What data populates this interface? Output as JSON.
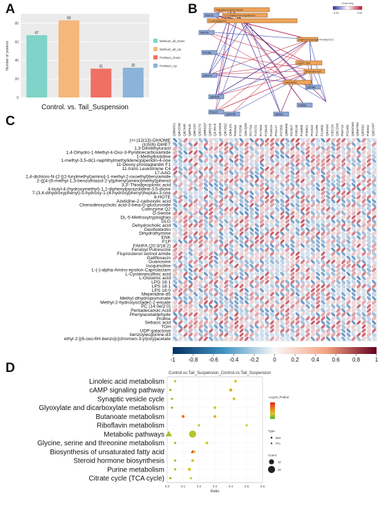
{
  "panels": {
    "a": "A",
    "b": "B",
    "c": "C",
    "d": "D"
  },
  "chart_data": [
    {
      "panel": "A",
      "type": "bar",
      "xlabel": "Control. vs. Tail_Suspension",
      "ylabel": "Number of proteins",
      "ylim": [
        0,
        90
      ],
      "yticks": [
        0,
        20,
        40,
        60,
        80
      ],
      "categories": [
        "Methium_all_Down",
        "Methium_all_Up",
        "ProtNum_Down",
        "ProtNum_Up"
      ],
      "values": [
        67,
        83,
        31,
        32
      ],
      "colors": [
        "#7fd3c8",
        "#f5b77b",
        "#f07064",
        "#8cb3d9"
      ],
      "legend": [
        "Methium_all_Down",
        "Methium_all_Up",
        "ProtNum_Down",
        "ProtNum_Up"
      ],
      "legend_position": "right",
      "grid": true
    },
    {
      "panel": "B",
      "type": "network",
      "legend_title": "Color key",
      "legend_min": "-0.93",
      "legend_max": "0.93",
      "metabolite_nodes": [
        "Fluprostenol serinol amide",
        "1,1'-Dimethyl-4,4'-bipyridinium",
        "1-Lauroylglycerol",
        "(Hydroxy-isopropyl)-4-methyl-1(7)",
        "LysoPC 16:0",
        "Dethiobiotin",
        "Butanoate acid"
      ],
      "protein_nodes": [
        "P06733",
        "P69734",
        "P07356",
        "Q9D279",
        "Q8VDD5",
        "P10107",
        "Q9WTR5",
        "Q60932",
        "P36552",
        "Q6P549"
      ]
    },
    {
      "panel": "C",
      "type": "heatmap",
      "colorbar_ticks": [
        "-1",
        "-0.8",
        "-0.6",
        "-0.4",
        "-0.2",
        "0",
        "0.2",
        "0.4",
        "0.6",
        "0.8",
        "1"
      ],
      "xlim": [
        -1,
        1
      ],
      "columns": [
        "Q8BMS1",
        "Q8VCN5",
        "Q8CIM8",
        "Q6P549",
        "Q8K1Z0",
        "Q9D279",
        "Q8BGQ7",
        "Q8R0Y6",
        "Q9JHU4",
        "Q8VDD5",
        "Q8C0Q2",
        "Q99LC5",
        "P55264",
        "P70296",
        "Q9CQN1",
        "P57759",
        "P20152",
        "P17563",
        "P26645",
        "P16015",
        "P04117",
        "P07356",
        "Q8BH59",
        "P97807",
        "P08249",
        "P16858",
        "P06801",
        "P01942",
        "P11499",
        "P14869",
        "Q64433",
        "O35129",
        "Q9CZU6",
        "P60710",
        "P52480",
        "Q9DCW4",
        "Q9WTR5",
        "Q60932",
        "P36552",
        "Q9D1M7"
      ],
      "rows": [
        "(+/-)12(13)-DiHOME",
        "(±)5(6)-DiHET",
        "1,3-Dimethyluracil",
        "1,4-Dihydro-1-Methyl-4-Oxo-3-Pyridinecarboxamide",
        "1-Methylhistidine",
        "1-methyl-3,5-di(1-naphthylmethylidene)piperidin-4-one",
        "11-Deoxy prostaglandin F1",
        "11-trans Leukotriene C4",
        "17-AAG",
        "2,4-dichloro-N-{2-[(2-furylmethyl)amino]-1-methyl-2-oxoethyl}benzamide",
        "2-{[(4-(6-methyl-1,3-benzothiazol-2-yl)phenyl)amino]methyl}phenol",
        "3,3'-Thiodipropionic acid",
        "4-butyl-4-(hydroxymethyl)-1,2-diphenylpyrazolidine-3,5-dione",
        "7-(3,4-dihydroxyphenyl)-5-hydroxy-1-(4-hydroxyphenyl)heptan-3-one",
        "8-HOTE",
        "Azetidine-2-carboxylic acid",
        "Chenodeoxycholic acid-3-beta-D-glucuronide",
        "Coenzyme Q2",
        "D-Serine",
        "DL-5-Methoxytryptophan",
        "DLG",
        "Dehydrocholic acid",
        "Desthiobiotin",
        "Dihydrothymine",
        "ENK",
        "F1P",
        "FAHFA (20:3/18:2)",
        "Feruloyl Putrescine",
        "Fluprostenol serinol amide",
        "Gatifloxacin",
        "Guanosine",
        "Isoquinoline",
        "L-(-)-alpha-Amino-epsilon-Caprolactam",
        "L-Cysteinesulfinic acid",
        "L-Glutamic acid",
        "LPG 18:1",
        "LPS 18:1",
        "LPS 18:0",
        "Meperidine-d5",
        "Methyl dihydrojasmonate",
        "Methyl-2-hydroxyoctadec-2-enoate",
        "PC (14:0e/2:0)",
        "Pentadecanoic Acid",
        "Phenylacetaldehyde",
        "Proline",
        "Sebacic acid",
        "TGH",
        "UDP-galactose",
        "benzoylecgonine-d3",
        "ethyl 2-[(6-oxo-6H-benzo[c]chromen-3-yl)oxy]acetate"
      ]
    },
    {
      "panel": "D",
      "type": "scatter",
      "title": "Control.vs.Tail_Suspension_Control.vs.Tail_Suspension",
      "xlabel": "Ratio",
      "xlim": [
        0,
        0.6
      ],
      "xticks": [
        "0.0",
        "0.1",
        "0.2",
        "0.3",
        "0.4",
        "0.5",
        "0.6"
      ],
      "categories": [
        "Linoleic acid metabolism",
        "cAMP signaling pathway",
        "Synaptic vesicle cycle",
        "Glyoxylate and dicarboxylate metabolism",
        "Butanoate metabolism",
        "Riboflavin metabolism",
        "Metabolic pathways",
        "Glycine, serine and threonine metabolism",
        "Biosynthesis of unsaturated fatty acid",
        "Steroid hormone biosynthesis",
        "Purine metabolism",
        "Citrate cycle (TCA cycle)"
      ],
      "legend_color_title": "-Log10_Pvalue",
      "legend_type_title": "Type",
      "legend_type_items": [
        "Met",
        "Pro"
      ],
      "legend_count_title": "Count",
      "legend_count_items": [
        "10",
        "20"
      ],
      "points": [
        {
          "category": "Linoleic acid metabolism",
          "x": 0.05,
          "count": 2,
          "type": "Met",
          "p": 0.4
        },
        {
          "category": "Linoleic acid metabolism",
          "x": 0.43,
          "count": 3,
          "type": "Met",
          "p": 0.5
        },
        {
          "category": "cAMP signaling pathway",
          "x": 0.02,
          "count": 2,
          "type": "Met",
          "p": 0.3
        },
        {
          "category": "cAMP signaling pathway",
          "x": 0.4,
          "count": 4,
          "type": "Met",
          "p": 0.6
        },
        {
          "category": "Synaptic vesicle cycle",
          "x": 0.03,
          "count": 2,
          "type": "Met",
          "p": 0.3
        },
        {
          "category": "Synaptic vesicle cycle",
          "x": 0.42,
          "count": 3,
          "type": "Met",
          "p": 0.5
        },
        {
          "category": "Glyoxylate and dicarboxylate metabolism",
          "x": 0.03,
          "count": 2,
          "type": "Met",
          "p": 0.3
        },
        {
          "category": "Glyoxylate and dicarboxylate metabolism",
          "x": 0.3,
          "count": 3,
          "type": "Met",
          "p": 0.5
        },
        {
          "category": "Butanoate metabolism",
          "x": 0.1,
          "count": 3,
          "type": "Met",
          "p": 0.85
        },
        {
          "category": "Butanoate metabolism",
          "x": 0.3,
          "count": 3,
          "type": "Met",
          "p": 0.6
        },
        {
          "category": "Riboflavin metabolism",
          "x": 0.2,
          "count": 2,
          "type": "Met",
          "p": 0.4
        },
        {
          "category": "Riboflavin metabolism",
          "x": 0.5,
          "count": 2,
          "type": "Met",
          "p": 0.5
        },
        {
          "category": "Metabolic pathways",
          "x": 0.01,
          "count": 10,
          "type": "Pro",
          "p": 0.35
        },
        {
          "category": "Metabolic pathways",
          "x": 0.16,
          "count": 20,
          "type": "Met",
          "p": 0.4
        },
        {
          "category": "Glycine, serine and threonine metabolism",
          "x": 0.05,
          "count": 2,
          "type": "Met",
          "p": 0.3
        },
        {
          "category": "Glycine, serine and threonine metabolism",
          "x": 0.25,
          "count": 3,
          "type": "Met",
          "p": 0.5
        },
        {
          "category": "Biosynthesis of unsaturated fatty acid",
          "x": 0.16,
          "count": 3,
          "type": "Pro",
          "p": 1.0
        },
        {
          "category": "Biosynthesis of unsaturated fatty acid",
          "x": 0.17,
          "count": 3,
          "type": "Met",
          "p": 0.5
        },
        {
          "category": "Steroid hormone biosynthesis",
          "x": 0.05,
          "count": 2,
          "type": "Met",
          "p": 0.3
        },
        {
          "category": "Steroid hormone biosynthesis",
          "x": 0.16,
          "count": 3,
          "type": "Met",
          "p": 0.5
        },
        {
          "category": "Purine metabolism",
          "x": 0.05,
          "count": 2,
          "type": "Met",
          "p": 0.3
        },
        {
          "category": "Purine metabolism",
          "x": 0.14,
          "count": 4,
          "type": "Met",
          "p": 0.5
        },
        {
          "category": "Citrate cycle (TCA cycle)",
          "x": 0.02,
          "count": 2,
          "type": "Met",
          "p": 0.3
        },
        {
          "category": "Citrate cycle (TCA cycle)",
          "x": 0.15,
          "count": 2,
          "type": "Met",
          "p": 0.5
        }
      ]
    }
  ]
}
